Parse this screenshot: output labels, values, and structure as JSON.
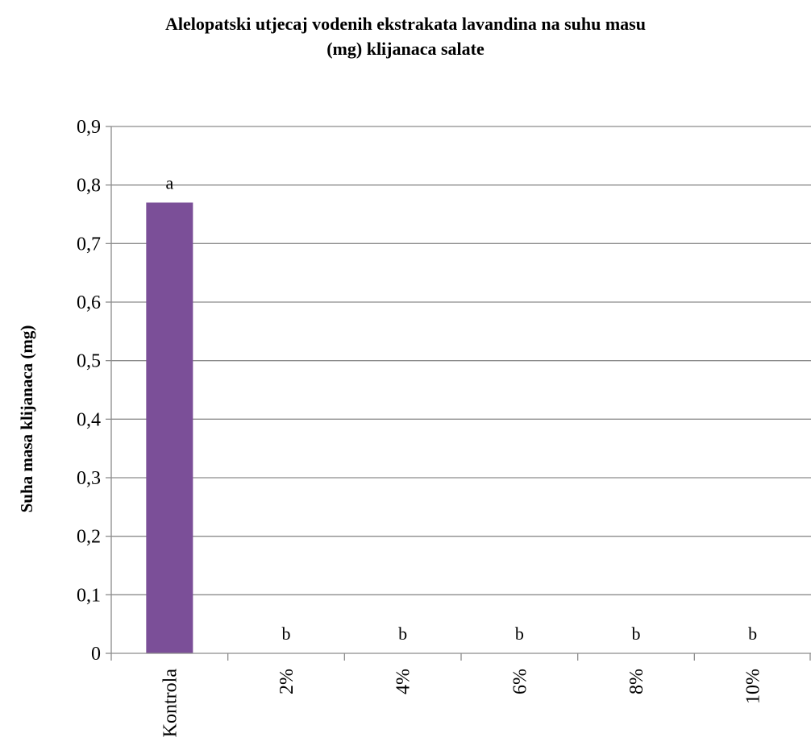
{
  "chart_data": {
    "type": "bar",
    "title": [
      "Alelopatski utjecaj vodenih ekstrakata lavandina na suhu masu",
      "(mg) klijanaca salate"
    ],
    "xlabel": "",
    "ylabel": "Suha masa klijanaca (mg)",
    "categories": [
      "Kontrola",
      "2%",
      "4%",
      "6%",
      "8%",
      "10%"
    ],
    "values": [
      0.77,
      0,
      0,
      0,
      0,
      0
    ],
    "labels": [
      "a",
      "b",
      "b",
      "b",
      "b",
      "b"
    ],
    "ylim": [
      0,
      0.9
    ],
    "yticks": [
      "0",
      "0,1",
      "0,2",
      "0,3",
      "0,4",
      "0,5",
      "0,6",
      "0,7",
      "0,8",
      "0,9"
    ],
    "grid": true,
    "color": "#7b4f98"
  }
}
